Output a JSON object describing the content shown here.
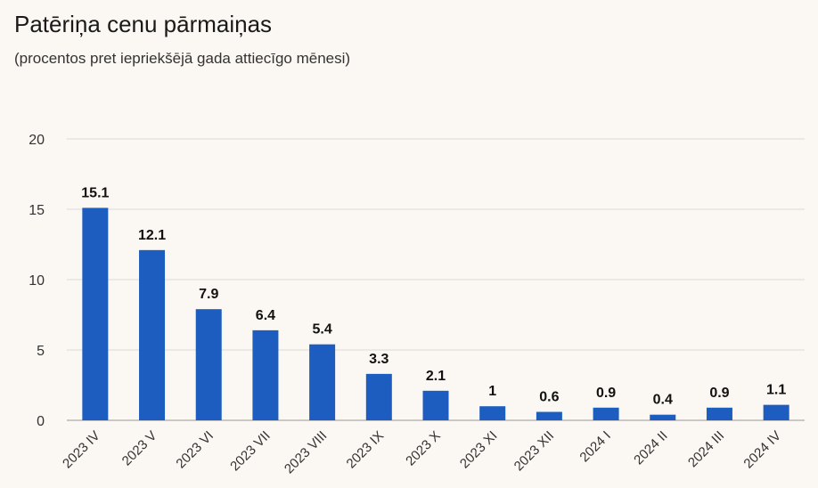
{
  "header": {
    "title": "Patēriņa cenu pārmaiņas",
    "subtitle": "(procentos pret iepriekšējā gada attiecīgo mēnesi)"
  },
  "colors": {
    "bar": "#1c5dbf",
    "grid": "#dddad4",
    "background": "#fbf8f3"
  },
  "chart_data": {
    "type": "bar",
    "title": "Patēriņa cenu pārmaiņas",
    "subtitle": "(procentos pret iepriekšējā gada attiecīgo mēnesi)",
    "xlabel": "",
    "ylabel": "",
    "ylim": [
      0,
      20
    ],
    "yticks": [
      0,
      5,
      10,
      15,
      20
    ],
    "grid": true,
    "legend": "none",
    "categories": [
      "2023 IV",
      "2023 V",
      "2023 VI",
      "2023 VII",
      "2023 VIII",
      "2023 IX",
      "2023 X",
      "2023 XI",
      "2023 XII",
      "2024 I",
      "2024 II",
      "2024 III",
      "2024 IV"
    ],
    "values": [
      15.1,
      12.1,
      7.9,
      6.4,
      5.4,
      3.3,
      2.1,
      1,
      0.6,
      0.9,
      0.4,
      0.9,
      1.1
    ],
    "value_labels": [
      "15.1",
      "12.1",
      "7.9",
      "6.4",
      "5.4",
      "3.3",
      "2.1",
      "1",
      "0.6",
      "0.9",
      "0.4",
      "0.9",
      "1.1"
    ]
  }
}
